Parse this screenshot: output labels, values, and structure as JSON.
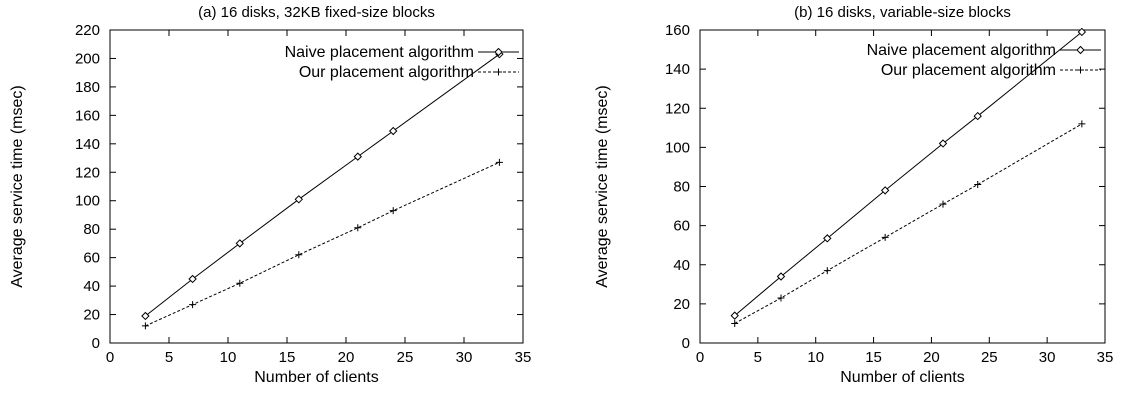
{
  "chart_data": [
    {
      "type": "line",
      "title": "(a) 16 disks, 32KB fixed-size blocks",
      "xlabel": "Number of clients",
      "ylabel": "Average service time (msec)",
      "xlim": [
        0,
        35
      ],
      "ylim": [
        0,
        220
      ],
      "xticks": [
        "0",
        "5",
        "10",
        "15",
        "20",
        "25",
        "30",
        "35"
      ],
      "yticks": [
        "0",
        "20",
        "40",
        "60",
        "80",
        "100",
        "120",
        "140",
        "160",
        "180",
        "200",
        "220"
      ],
      "grid": false,
      "legend_position": "top-right",
      "series": [
        {
          "name": "Naive placement algorithm",
          "marker": "diamond",
          "line": "solid",
          "x": [
            3,
            7,
            11,
            16,
            21,
            24,
            33
          ],
          "y": [
            19,
            45,
            70,
            101,
            131,
            149,
            203
          ]
        },
        {
          "name": "Our placement algorithm",
          "marker": "plus",
          "line": "dashed",
          "x": [
            3,
            7,
            11,
            16,
            21,
            24,
            33
          ],
          "y": [
            12,
            27,
            42,
            62,
            81,
            93,
            127
          ]
        }
      ]
    },
    {
      "type": "line",
      "title": "(b) 16 disks, variable-size blocks",
      "xlabel": "Number of clients",
      "ylabel": "Average service time (msec)",
      "xlim": [
        0,
        35
      ],
      "ylim": [
        0,
        160
      ],
      "xticks": [
        "0",
        "5",
        "10",
        "15",
        "20",
        "25",
        "30",
        "35"
      ],
      "yticks": [
        "0",
        "20",
        "40",
        "60",
        "80",
        "100",
        "120",
        "140",
        "160"
      ],
      "grid": false,
      "legend_position": "top-right",
      "series": [
        {
          "name": "Naive placement algorithm",
          "marker": "diamond",
          "line": "solid",
          "x": [
            3,
            7,
            11,
            16,
            21,
            24,
            33
          ],
          "y": [
            14,
            34,
            53.5,
            78,
            102,
            116,
            159
          ]
        },
        {
          "name": "Our placement algorithm",
          "marker": "plus",
          "line": "dashed",
          "x": [
            3,
            7,
            11,
            16,
            21,
            24,
            33
          ],
          "y": [
            10,
            23,
            37,
            54,
            71,
            81,
            112
          ]
        }
      ]
    }
  ]
}
